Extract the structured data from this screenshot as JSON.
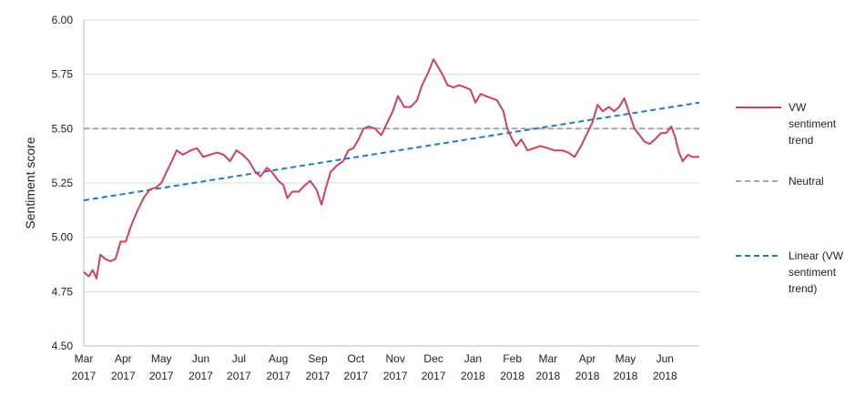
{
  "chart_data": {
    "type": "line",
    "title": "",
    "xlabel": "",
    "ylabel": "Sentiment score",
    "ylim": [
      4.5,
      6.0
    ],
    "yticks": [
      "4.50",
      "4.75",
      "5.00",
      "5.25",
      "5.50",
      "5.75",
      "6.00"
    ],
    "grid": "horizontal",
    "legend_position": "right",
    "x_ticks": [
      {
        "month": "Mar",
        "year": "2017"
      },
      {
        "month": "Apr",
        "year": "2017"
      },
      {
        "month": "May",
        "year": "2017"
      },
      {
        "month": "Jun",
        "year": "2017"
      },
      {
        "month": "Jul",
        "year": "2017"
      },
      {
        "month": "Aug",
        "year": "2017"
      },
      {
        "month": "Sep",
        "year": "2017"
      },
      {
        "month": "Oct",
        "year": "2017"
      },
      {
        "month": "Nov",
        "year": "2017"
      },
      {
        "month": "Dec",
        "year": "2017"
      },
      {
        "month": "Jan",
        "year": "2018"
      },
      {
        "month": "Feb",
        "year": "2018"
      },
      {
        "month": "Mar",
        "year": "2018"
      },
      {
        "month": "Apr",
        "year": "2018"
      },
      {
        "month": "May",
        "year": "2018"
      },
      {
        "month": "Jun",
        "year": "2018"
      }
    ],
    "series": [
      {
        "name": "VW sentiment trend",
        "color": "#d0405f",
        "style": "solid",
        "points": [
          [
            "2017-03-01",
            4.84
          ],
          [
            "2017-03-05",
            4.82
          ],
          [
            "2017-03-08",
            4.85
          ],
          [
            "2017-03-11",
            4.81
          ],
          [
            "2017-03-14",
            4.92
          ],
          [
            "2017-03-18",
            4.9
          ],
          [
            "2017-03-22",
            4.89
          ],
          [
            "2017-03-26",
            4.9
          ],
          [
            "2017-03-30",
            4.98
          ],
          [
            "2017-04-03",
            4.98
          ],
          [
            "2017-04-07",
            5.05
          ],
          [
            "2017-04-12",
            5.12
          ],
          [
            "2017-04-17",
            5.18
          ],
          [
            "2017-04-22",
            5.22
          ],
          [
            "2017-04-27",
            5.23
          ],
          [
            "2017-05-01",
            5.25
          ],
          [
            "2017-05-05",
            5.3
          ],
          [
            "2017-05-10",
            5.36
          ],
          [
            "2017-05-13",
            5.4
          ],
          [
            "2017-05-18",
            5.38
          ],
          [
            "2017-05-24",
            5.4
          ],
          [
            "2017-05-29",
            5.41
          ],
          [
            "2017-06-03",
            5.37
          ],
          [
            "2017-06-08",
            5.38
          ],
          [
            "2017-06-14",
            5.39
          ],
          [
            "2017-06-19",
            5.38
          ],
          [
            "2017-06-24",
            5.35
          ],
          [
            "2017-06-29",
            5.4
          ],
          [
            "2017-07-04",
            5.38
          ],
          [
            "2017-07-09",
            5.35
          ],
          [
            "2017-07-14",
            5.3
          ],
          [
            "2017-07-18",
            5.28
          ],
          [
            "2017-07-23",
            5.32
          ],
          [
            "2017-07-27",
            5.3
          ],
          [
            "2017-08-01",
            5.26
          ],
          [
            "2017-08-05",
            5.24
          ],
          [
            "2017-08-08",
            5.18
          ],
          [
            "2017-08-12",
            5.21
          ],
          [
            "2017-08-17",
            5.21
          ],
          [
            "2017-08-22",
            5.24
          ],
          [
            "2017-08-26",
            5.26
          ],
          [
            "2017-08-31",
            5.22
          ],
          [
            "2017-09-04",
            5.15
          ],
          [
            "2017-09-07",
            5.22
          ],
          [
            "2017-09-11",
            5.3
          ],
          [
            "2017-09-16",
            5.33
          ],
          [
            "2017-09-21",
            5.35
          ],
          [
            "2017-09-25",
            5.4
          ],
          [
            "2017-09-29",
            5.41
          ],
          [
            "2017-10-03",
            5.45
          ],
          [
            "2017-10-07",
            5.5
          ],
          [
            "2017-10-11",
            5.51
          ],
          [
            "2017-10-16",
            5.5
          ],
          [
            "2017-10-21",
            5.47
          ],
          [
            "2017-10-25",
            5.52
          ],
          [
            "2017-10-30",
            5.58
          ],
          [
            "2017-11-03",
            5.65
          ],
          [
            "2017-11-08",
            5.6
          ],
          [
            "2017-11-13",
            5.6
          ],
          [
            "2017-11-18",
            5.63
          ],
          [
            "2017-11-22",
            5.7
          ],
          [
            "2017-11-27",
            5.76
          ],
          [
            "2017-12-01",
            5.82
          ],
          [
            "2017-12-05",
            5.78
          ],
          [
            "2017-12-08",
            5.75
          ],
          [
            "2017-12-12",
            5.7
          ],
          [
            "2017-12-17",
            5.69
          ],
          [
            "2017-12-21",
            5.7
          ],
          [
            "2017-12-26",
            5.69
          ],
          [
            "2017-12-30",
            5.68
          ],
          [
            "2018-01-03",
            5.62
          ],
          [
            "2018-01-07",
            5.66
          ],
          [
            "2018-01-11",
            5.65
          ],
          [
            "2018-01-16",
            5.64
          ],
          [
            "2018-01-20",
            5.63
          ],
          [
            "2018-01-25",
            5.58
          ],
          [
            "2018-01-28",
            5.5
          ],
          [
            "2018-02-01",
            5.45
          ],
          [
            "2018-02-04",
            5.42
          ],
          [
            "2018-02-08",
            5.45
          ],
          [
            "2018-02-13",
            5.4
          ],
          [
            "2018-02-18",
            5.41
          ],
          [
            "2018-02-23",
            5.42
          ],
          [
            "2018-03-01",
            5.41
          ],
          [
            "2018-03-06",
            5.4
          ],
          [
            "2018-03-12",
            5.4
          ],
          [
            "2018-03-17",
            5.39
          ],
          [
            "2018-03-22",
            5.37
          ],
          [
            "2018-03-27",
            5.42
          ],
          [
            "2018-04-01",
            5.48
          ],
          [
            "2018-04-05",
            5.53
          ],
          [
            "2018-04-09",
            5.61
          ],
          [
            "2018-04-13",
            5.58
          ],
          [
            "2018-04-18",
            5.6
          ],
          [
            "2018-04-22",
            5.58
          ],
          [
            "2018-04-26",
            5.6
          ],
          [
            "2018-04-30",
            5.64
          ],
          [
            "2018-05-04",
            5.57
          ],
          [
            "2018-05-08",
            5.5
          ],
          [
            "2018-05-12",
            5.47
          ],
          [
            "2018-05-16",
            5.44
          ],
          [
            "2018-05-20",
            5.43
          ],
          [
            "2018-05-24",
            5.45
          ],
          [
            "2018-05-29",
            5.48
          ],
          [
            "2018-06-02",
            5.48
          ],
          [
            "2018-06-06",
            5.51
          ],
          [
            "2018-06-09",
            5.46
          ],
          [
            "2018-06-12",
            5.39
          ],
          [
            "2018-06-15",
            5.35
          ],
          [
            "2018-06-19",
            5.38
          ],
          [
            "2018-06-23",
            5.37
          ],
          [
            "2018-06-28",
            5.37
          ]
        ]
      },
      {
        "name": "Neutral",
        "color": "#a6a6a6",
        "style": "dashed",
        "points": [
          [
            "2017-03-01",
            5.5
          ],
          [
            "2018-06-28",
            5.5
          ]
        ]
      },
      {
        "name": "Linear (VW sentiment trend)",
        "color": "#1f7bc0",
        "style": "dashed",
        "points": [
          [
            "2017-03-01",
            5.17
          ],
          [
            "2018-06-28",
            5.62
          ]
        ]
      }
    ]
  },
  "legend": {
    "items": [
      {
        "lines": [
          "VW",
          "sentiment",
          "trend"
        ],
        "color": "#d0405f",
        "style": "solid"
      },
      {
        "lines": [
          "Neutral"
        ],
        "color": "#a6a6a6",
        "style": "dashed"
      },
      {
        "lines": [
          "Linear (VW",
          "sentiment",
          "trend)"
        ],
        "color": "#1f7bc0",
        "style": "dashed"
      }
    ]
  }
}
